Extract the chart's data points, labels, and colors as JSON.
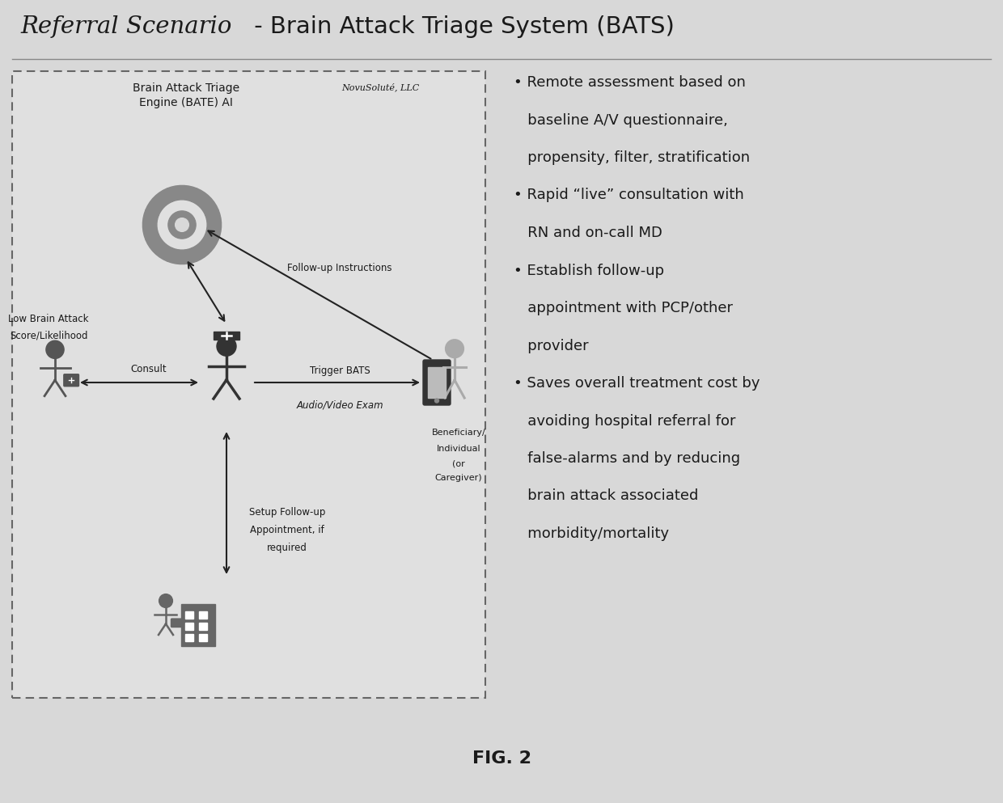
{
  "title_italic": "Referral Scenario",
  "title_normal": " - Brain Attack Triage System (BATS)",
  "fig_label": "FIG. 2",
  "bg_color": "#d8d8d8",
  "box_label_main": "Brain Attack Triage\nEngine (BATE) AI",
  "box_label_company": "NovuSoluté, LLC",
  "left_label_l1": "Low Brain Attack",
  "left_label_l2": "Score/Likelihood",
  "bottom_label_l1": "Setup Follow-up",
  "bottom_label_l2": "Appointment, if",
  "bottom_label_l3": "required",
  "right_label_l1": "Beneficiary/",
  "right_label_l2": "Individual",
  "right_label_l3": "(or",
  "right_label_l4": "Caregiver)",
  "arrow_consult": "Consult",
  "arrow_trigger_l1": "Trigger BATS",
  "arrow_trigger_l2": "Audio/Video Exam",
  "arrow_followup": "Follow-up Instructions",
  "text_color": "#1a1a1a",
  "arrow_color": "#222222",
  "dashed_color": "#666666",
  "box_bg": "#e0e0e0",
  "bullet_lines": [
    "• Remote assessment based on",
    "   baseline A/V questionnaire,",
    "   propensity, filter, stratification",
    "• Rapid “live” consultation with",
    "   RN and on-call MD",
    "• Establish follow-up",
    "   appointment with PCP/other",
    "   provider",
    "• Saves overall treatment cost by",
    "   avoiding hospital referral for",
    "   false-alarms and by reducing",
    "   brain attack associated",
    "   morbidity/mortality"
  ]
}
